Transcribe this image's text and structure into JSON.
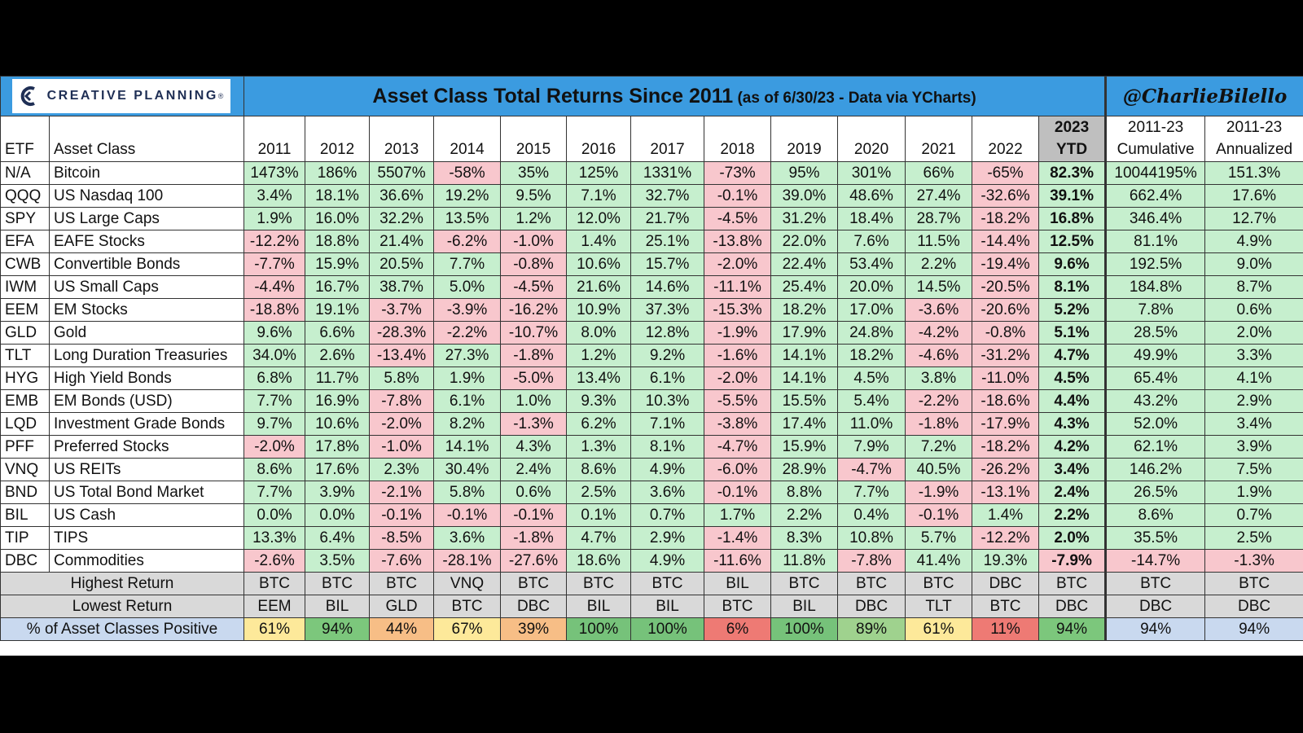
{
  "logo": {
    "text": "CREATIVE PLANNING",
    "reg": "®",
    "accent": "#1f2f55"
  },
  "title": {
    "main": "Asset Class Total Returns Since 2011",
    "sub": "(as of 6/30/23 - Data via YCharts)"
  },
  "handle": "@CharlieBilello",
  "colors": {
    "header_bg": "#3b9be0",
    "positive": "#c6efce",
    "negative": "#f8c7cd",
    "summary_bg": "#d9d9d9",
    "ytd_header_bg": "#bfbfbf"
  },
  "chart_data": {
    "type": "table",
    "columns": {
      "etf": "ETF",
      "asset_class": "Asset Class",
      "years": [
        "2011",
        "2012",
        "2013",
        "2014",
        "2015",
        "2016",
        "2017",
        "2018",
        "2019",
        "2020",
        "2021",
        "2022"
      ],
      "ytd": [
        "2023",
        "YTD"
      ],
      "cumulative": [
        "2011-23",
        "Cumulative"
      ],
      "annualized": [
        "2011-23",
        "Annualized"
      ]
    },
    "rows": [
      {
        "etf": "N/A",
        "name": "Bitcoin",
        "values": [
          "1473%",
          "186%",
          "5507%",
          "-58%",
          "35%",
          "125%",
          "1331%",
          "-73%",
          "95%",
          "301%",
          "66%",
          "-65%"
        ],
        "ytd": "82.3%",
        "cumulative": "10044195%",
        "annualized": "151.3%"
      },
      {
        "etf": "QQQ",
        "name": "US Nasdaq 100",
        "values": [
          "3.4%",
          "18.1%",
          "36.6%",
          "19.2%",
          "9.5%",
          "7.1%",
          "32.7%",
          "-0.1%",
          "39.0%",
          "48.6%",
          "27.4%",
          "-32.6%"
        ],
        "ytd": "39.1%",
        "cumulative": "662.4%",
        "annualized": "17.6%"
      },
      {
        "etf": "SPY",
        "name": "US Large Caps",
        "values": [
          "1.9%",
          "16.0%",
          "32.2%",
          "13.5%",
          "1.2%",
          "12.0%",
          "21.7%",
          "-4.5%",
          "31.2%",
          "18.4%",
          "28.7%",
          "-18.2%"
        ],
        "ytd": "16.8%",
        "cumulative": "346.4%",
        "annualized": "12.7%"
      },
      {
        "etf": "EFA",
        "name": "EAFE Stocks",
        "values": [
          "-12.2%",
          "18.8%",
          "21.4%",
          "-6.2%",
          "-1.0%",
          "1.4%",
          "25.1%",
          "-13.8%",
          "22.0%",
          "7.6%",
          "11.5%",
          "-14.4%"
        ],
        "ytd": "12.5%",
        "cumulative": "81.1%",
        "annualized": "4.9%"
      },
      {
        "etf": "CWB",
        "name": "Convertible Bonds",
        "values": [
          "-7.7%",
          "15.9%",
          "20.5%",
          "7.7%",
          "-0.8%",
          "10.6%",
          "15.7%",
          "-2.0%",
          "22.4%",
          "53.4%",
          "2.2%",
          "-19.4%"
        ],
        "ytd": "9.6%",
        "cumulative": "192.5%",
        "annualized": "9.0%"
      },
      {
        "etf": "IWM",
        "name": "US Small Caps",
        "values": [
          "-4.4%",
          "16.7%",
          "38.7%",
          "5.0%",
          "-4.5%",
          "21.6%",
          "14.6%",
          "-11.1%",
          "25.4%",
          "20.0%",
          "14.5%",
          "-20.5%"
        ],
        "ytd": "8.1%",
        "cumulative": "184.8%",
        "annualized": "8.7%"
      },
      {
        "etf": "EEM",
        "name": "EM Stocks",
        "values": [
          "-18.8%",
          "19.1%",
          "-3.7%",
          "-3.9%",
          "-16.2%",
          "10.9%",
          "37.3%",
          "-15.3%",
          "18.2%",
          "17.0%",
          "-3.6%",
          "-20.6%"
        ],
        "ytd": "5.2%",
        "cumulative": "7.8%",
        "annualized": "0.6%"
      },
      {
        "etf": "GLD",
        "name": "Gold",
        "values": [
          "9.6%",
          "6.6%",
          "-28.3%",
          "-2.2%",
          "-10.7%",
          "8.0%",
          "12.8%",
          "-1.9%",
          "17.9%",
          "24.8%",
          "-4.2%",
          "-0.8%"
        ],
        "ytd": "5.1%",
        "cumulative": "28.5%",
        "annualized": "2.0%"
      },
      {
        "etf": "TLT",
        "name": "Long Duration Treasuries",
        "values": [
          "34.0%",
          "2.6%",
          "-13.4%",
          "27.3%",
          "-1.8%",
          "1.2%",
          "9.2%",
          "-1.6%",
          "14.1%",
          "18.2%",
          "-4.6%",
          "-31.2%"
        ],
        "ytd": "4.7%",
        "cumulative": "49.9%",
        "annualized": "3.3%"
      },
      {
        "etf": "HYG",
        "name": "High Yield Bonds",
        "values": [
          "6.8%",
          "11.7%",
          "5.8%",
          "1.9%",
          "-5.0%",
          "13.4%",
          "6.1%",
          "-2.0%",
          "14.1%",
          "4.5%",
          "3.8%",
          "-11.0%"
        ],
        "ytd": "4.5%",
        "cumulative": "65.4%",
        "annualized": "4.1%"
      },
      {
        "etf": "EMB",
        "name": "EM Bonds (USD)",
        "values": [
          "7.7%",
          "16.9%",
          "-7.8%",
          "6.1%",
          "1.0%",
          "9.3%",
          "10.3%",
          "-5.5%",
          "15.5%",
          "5.4%",
          "-2.2%",
          "-18.6%"
        ],
        "ytd": "4.4%",
        "cumulative": "43.2%",
        "annualized": "2.9%"
      },
      {
        "etf": "LQD",
        "name": "Investment Grade Bonds",
        "values": [
          "9.7%",
          "10.6%",
          "-2.0%",
          "8.2%",
          "-1.3%",
          "6.2%",
          "7.1%",
          "-3.8%",
          "17.4%",
          "11.0%",
          "-1.8%",
          "-17.9%"
        ],
        "ytd": "4.3%",
        "cumulative": "52.0%",
        "annualized": "3.4%"
      },
      {
        "etf": "PFF",
        "name": "Preferred Stocks",
        "values": [
          "-2.0%",
          "17.8%",
          "-1.0%",
          "14.1%",
          "4.3%",
          "1.3%",
          "8.1%",
          "-4.7%",
          "15.9%",
          "7.9%",
          "7.2%",
          "-18.2%"
        ],
        "ytd": "4.2%",
        "cumulative": "62.1%",
        "annualized": "3.9%"
      },
      {
        "etf": "VNQ",
        "name": "US REITs",
        "values": [
          "8.6%",
          "17.6%",
          "2.3%",
          "30.4%",
          "2.4%",
          "8.6%",
          "4.9%",
          "-6.0%",
          "28.9%",
          "-4.7%",
          "40.5%",
          "-26.2%"
        ],
        "ytd": "3.4%",
        "cumulative": "146.2%",
        "annualized": "7.5%"
      },
      {
        "etf": "BND",
        "name": "US Total Bond Market",
        "values": [
          "7.7%",
          "3.9%",
          "-2.1%",
          "5.8%",
          "0.6%",
          "2.5%",
          "3.6%",
          "-0.1%",
          "8.8%",
          "7.7%",
          "-1.9%",
          "-13.1%"
        ],
        "ytd": "2.4%",
        "cumulative": "26.5%",
        "annualized": "1.9%"
      },
      {
        "etf": "BIL",
        "name": "US Cash",
        "values": [
          "0.0%",
          "0.0%",
          "-0.1%",
          "-0.1%",
          "-0.1%",
          "0.1%",
          "0.7%",
          "1.7%",
          "2.2%",
          "0.4%",
          "-0.1%",
          "1.4%"
        ],
        "ytd": "2.2%",
        "cumulative": "8.6%",
        "annualized": "0.7%"
      },
      {
        "etf": "TIP",
        "name": "TIPS",
        "values": [
          "13.3%",
          "6.4%",
          "-8.5%",
          "3.6%",
          "-1.8%",
          "4.7%",
          "2.9%",
          "-1.4%",
          "8.3%",
          "10.8%",
          "5.7%",
          "-12.2%"
        ],
        "ytd": "2.0%",
        "cumulative": "35.5%",
        "annualized": "2.5%"
      },
      {
        "etf": "DBC",
        "name": "Commodities",
        "values": [
          "-2.6%",
          "3.5%",
          "-7.6%",
          "-28.1%",
          "-27.6%",
          "18.6%",
          "4.9%",
          "-11.6%",
          "11.8%",
          "-7.8%",
          "41.4%",
          "19.3%"
        ],
        "ytd": "-7.9%",
        "cumulative": "-14.7%",
        "annualized": "-1.3%"
      }
    ],
    "summary": {
      "highest": {
        "label": "Highest Return",
        "values": [
          "BTC",
          "BTC",
          "BTC",
          "VNQ",
          "BTC",
          "BTC",
          "BTC",
          "BIL",
          "BTC",
          "BTC",
          "BTC",
          "DBC",
          "BTC",
          "BTC",
          "BTC"
        ]
      },
      "lowest": {
        "label": "Lowest Return",
        "values": [
          "EEM",
          "BIL",
          "GLD",
          "BTC",
          "DBC",
          "BIL",
          "BIL",
          "BTC",
          "BIL",
          "DBC",
          "TLT",
          "BTC",
          "DBC",
          "DBC",
          "DBC"
        ]
      },
      "positive": {
        "label": "% of Asset Classes Positive",
        "values": [
          "61%",
          "94%",
          "44%",
          "67%",
          "39%",
          "100%",
          "100%",
          "6%",
          "100%",
          "89%",
          "61%",
          "11%",
          "94%",
          "94%",
          "94%"
        ],
        "colors": [
          "#fde99a",
          "#7cc77c",
          "#f7be86",
          "#fde99a",
          "#f7be86",
          "#76c27a",
          "#76c27a",
          "#ee7a74",
          "#76c27a",
          "#9fd28e",
          "#fde99a",
          "#ee7a74",
          "#7cc77c",
          "#c9d9ef",
          "#c9d9ef"
        ]
      }
    }
  }
}
